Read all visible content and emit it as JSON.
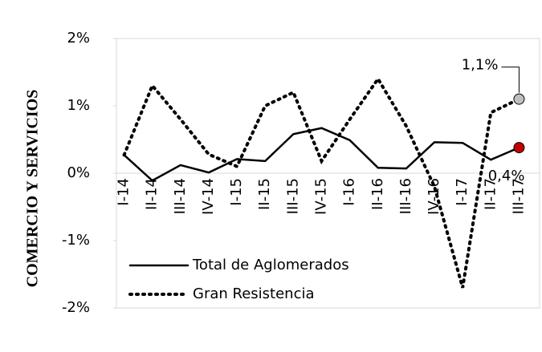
{
  "chart_data": {
    "type": "line",
    "y_label": "COMERCIO Y SERVICIOS",
    "categories": [
      "I-14",
      "II-14",
      "III-14",
      "IV-14",
      "I-15",
      "II-15",
      "III-15",
      "IV-15",
      "I-16",
      "II-16",
      "III-16",
      "IV-16",
      "I-17",
      "II-17",
      "III-17"
    ],
    "series": [
      {
        "name": "Total de Aglomerados",
        "color": "#000000",
        "dash": "solid",
        "marker_color": "#c00000",
        "values": [
          0.27,
          -0.11,
          0.12,
          0.01,
          0.21,
          0.18,
          0.58,
          0.67,
          0.49,
          0.08,
          0.07,
          0.46,
          0.45,
          0.2,
          0.38
        ],
        "value_labels": [
          null,
          null,
          null,
          null,
          null,
          null,
          null,
          null,
          null,
          null,
          null,
          null,
          null,
          null,
          "0,4%"
        ]
      },
      {
        "name": "Gran Resistencia",
        "color": "#000000",
        "dash": "dotted",
        "marker_color": "#bfbfbf",
        "values": [
          0.27,
          1.3,
          0.8,
          0.28,
          0.1,
          1.0,
          1.2,
          0.18,
          0.8,
          1.4,
          0.7,
          -0.2,
          -1.7,
          0.9,
          1.1
        ],
        "value_labels": [
          null,
          null,
          null,
          null,
          null,
          null,
          null,
          null,
          null,
          null,
          null,
          null,
          null,
          null,
          "1,1%"
        ]
      }
    ],
    "ylim": [
      -2,
      2
    ],
    "yticks": [
      {
        "value": -2,
        "label": "-2%"
      },
      {
        "value": -1,
        "label": "-1%"
      },
      {
        "value": 0,
        "label": "0%"
      },
      {
        "value": 1,
        "label": "1%"
      },
      {
        "value": 2,
        "label": "2%"
      }
    ],
    "legend": "lower left"
  }
}
